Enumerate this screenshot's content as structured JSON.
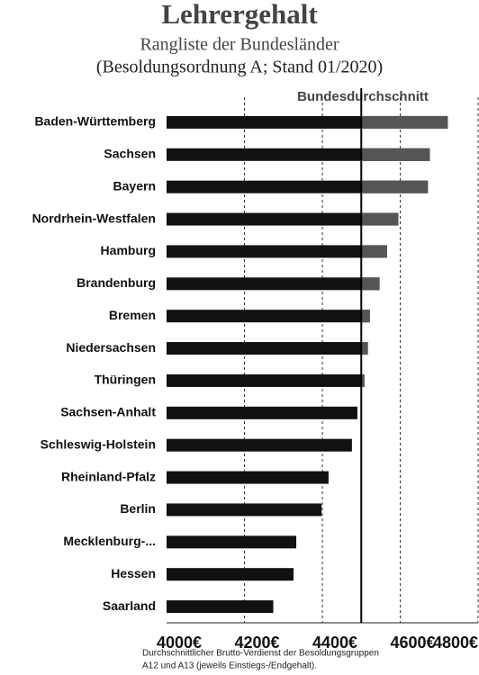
{
  "chart_data": {
    "type": "barh",
    "title": "Lehrergehalt",
    "subtitle": "Rangliste der Bundesländer",
    "subtitle2": "(Besoldungsordnung A; Stand 01/2020)",
    "footnote": [
      "Durchschnittlicher Brutto-Verdienst der Besoldungsgruppen",
      "A12 und A13 (jeweils Einstiegs-/Endgehalt)."
    ],
    "average": {
      "label": "Bundesdurchschnitt",
      "value": 4500
    },
    "categories": [
      "Baden-Württemberg",
      "Sachsen",
      "Bayern",
      "Nordrhein-Westfalen",
      "Hamburg",
      "Brandenburg",
      "Bremen",
      "Niedersachsen",
      "Thüringen",
      "Sachsen-Anhalt",
      "Schleswig-Holstein",
      "Rheinland-Pfalz",
      "Berlin",
      "Mecklenburg-...",
      "Hessen",
      "Saarland"
    ],
    "series": [
      {
        "color": "#111111",
        "above_color": "#555555",
        "values": [
          4722,
          4676,
          4671,
          4595,
          4566,
          4547,
          4522,
          4517,
          4508,
          4490,
          4476,
          4416,
          4398,
          4333,
          4326,
          4274
        ]
      }
    ],
    "xlim": [
      4000,
      4800
    ],
    "xticks": [
      {
        "value": 4000,
        "label": "4000€"
      },
      {
        "value": 4200,
        "label": "4200€"
      },
      {
        "value": 4400,
        "label": "4400€"
      },
      {
        "value": 4600,
        "label": "4600€"
      },
      {
        "value": 4800,
        "label": "4800€"
      }
    ],
    "grid": true
  }
}
